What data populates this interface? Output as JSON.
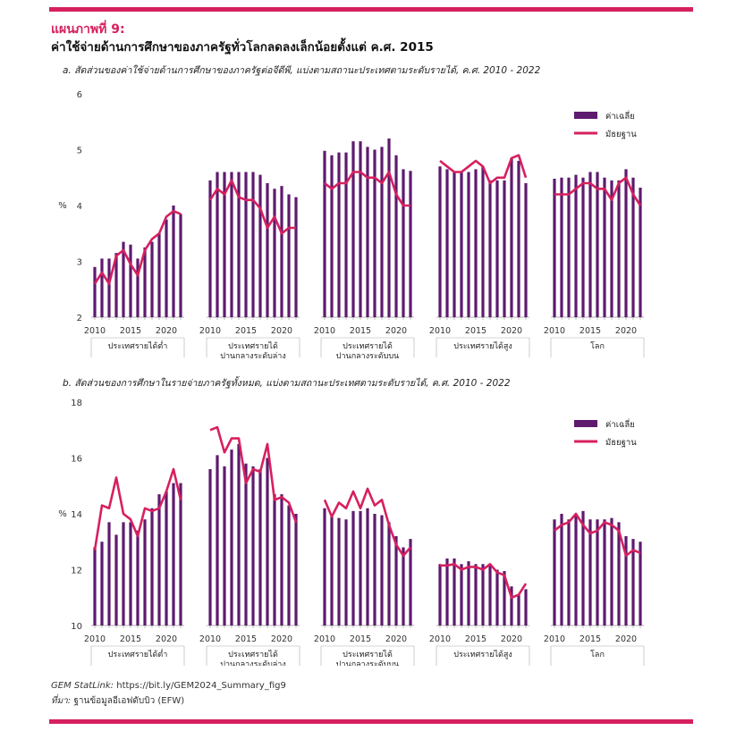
{
  "figure": {
    "label": "แผนภาพที่ 9:",
    "title": "ค่าใช้จ่ายด้านการศึกษาของภาครัฐทั่วโลกลดลงเล็กน้อยตั้งแต่ ค.ศ. 2015"
  },
  "footer": {
    "statlink_label": "GEM StatLink:",
    "statlink_url": "https://bit.ly/GEM2024_Summary_fig9",
    "source_label": "ที่มา:",
    "source_text": "ฐานข้อมูลอีเอฟดับบิว (EFW)"
  },
  "colors": {
    "bar": "#5e1a6e",
    "line": "#d6205f",
    "accent": "#d6205f"
  },
  "chart_data": [
    {
      "type": "bar",
      "title": "a. สัดส่วนของค่าใช้จ่ายด้านการศึกษาของภาครัฐต่อจีดีพี, แบ่งตามสถานะประเทศตามระดับรายได้, ค.ศ. 2010 - 2022",
      "ylabel": "%",
      "ylim": [
        2,
        6
      ],
      "yticks": [
        2,
        3,
        4,
        5,
        6
      ],
      "xticks": [
        "2010",
        "2015",
        "2020"
      ],
      "years": [
        2010,
        2011,
        2012,
        2013,
        2014,
        2015,
        2016,
        2017,
        2018,
        2019,
        2020,
        2021,
        2022
      ],
      "legend": {
        "bar": "ค่าเฉลี่ย",
        "line": "มัธยฐาน"
      },
      "groups": [
        {
          "name": [
            "ประเทศรายได้ต่ำ"
          ],
          "mean": [
            2.9,
            3.05,
            3.05,
            3.15,
            3.35,
            3.3,
            3.05,
            3.25,
            3.35,
            3.5,
            3.75,
            4.0,
            3.85
          ],
          "median": [
            2.6,
            2.8,
            2.6,
            3.1,
            3.2,
            2.95,
            2.75,
            3.2,
            3.4,
            3.5,
            3.8,
            3.9,
            3.85
          ]
        },
        {
          "name": [
            "ประเทศรายได้",
            "ปานกลางระดับล่าง"
          ],
          "mean": [
            4.45,
            4.6,
            4.6,
            4.6,
            4.6,
            4.6,
            4.6,
            4.55,
            4.4,
            4.3,
            4.35,
            4.2,
            4.15
          ],
          "median": [
            4.1,
            4.3,
            4.2,
            4.45,
            4.15,
            4.1,
            4.1,
            3.95,
            3.6,
            3.8,
            3.5,
            3.6,
            3.6
          ]
        },
        {
          "name": [
            "ประเทศรายได้",
            "ปานกลางระดับบน"
          ],
          "mean": [
            4.98,
            4.9,
            4.95,
            4.95,
            5.15,
            5.15,
            5.05,
            5.0,
            5.05,
            5.2,
            4.9,
            4.65,
            4.62
          ],
          "median": [
            4.4,
            4.3,
            4.4,
            4.4,
            4.6,
            4.6,
            4.5,
            4.5,
            4.4,
            4.6,
            4.2,
            4.0,
            4.0
          ]
        },
        {
          "name": [
            "ประเทศรายได้สูง"
          ],
          "mean": [
            4.7,
            4.65,
            4.6,
            4.6,
            4.6,
            4.65,
            4.7,
            4.45,
            4.45,
            4.45,
            4.85,
            4.8,
            4.4
          ],
          "median": [
            4.8,
            4.7,
            4.6,
            4.6,
            4.7,
            4.8,
            4.7,
            4.4,
            4.5,
            4.5,
            4.85,
            4.9,
            4.5
          ]
        },
        {
          "name": [
            "โลก"
          ],
          "mean": [
            4.48,
            4.5,
            4.5,
            4.55,
            4.5,
            4.6,
            4.6,
            4.5,
            4.45,
            4.45,
            4.65,
            4.5,
            4.32
          ],
          "median": [
            4.2,
            4.2,
            4.2,
            4.3,
            4.4,
            4.4,
            4.3,
            4.3,
            4.1,
            4.4,
            4.5,
            4.2,
            4.0
          ]
        }
      ]
    },
    {
      "type": "bar",
      "title": "b. สัดส่วนของการศึกษาในรายจ่ายภาครัฐทั้งหมด, แบ่งตามสถานะประเทศตามระดับรายได้, ค.ศ. 2010 - 2022",
      "ylabel": "%",
      "ylim": [
        10,
        18
      ],
      "yticks": [
        10,
        12,
        14,
        16,
        18
      ],
      "xticks": [
        "2010",
        "2015",
        "2020"
      ],
      "years": [
        2010,
        2011,
        2012,
        2013,
        2014,
        2015,
        2016,
        2017,
        2018,
        2019,
        2020,
        2021,
        2022
      ],
      "legend": {
        "bar": "ค่าเฉลี่ย",
        "line": "มัธยฐาน"
      },
      "groups": [
        {
          "name": [
            "ประเทศรายได้ต่ำ"
          ],
          "mean": [
            12.8,
            13.0,
            13.7,
            13.25,
            13.7,
            13.7,
            13.4,
            13.8,
            14.2,
            14.7,
            14.8,
            15.1,
            15.1
          ],
          "median": [
            12.7,
            14.3,
            14.2,
            15.3,
            14.0,
            13.8,
            13.2,
            14.2,
            14.1,
            14.2,
            14.8,
            15.6,
            14.5
          ]
        },
        {
          "name": [
            "ประเทศรายได้",
            "ปานกลางระดับล่าง"
          ],
          "mean": [
            15.6,
            16.1,
            15.7,
            16.3,
            16.5,
            15.8,
            15.7,
            15.6,
            16.0,
            14.7,
            14.7,
            14.3,
            14.0
          ],
          "median": [
            17.0,
            17.1,
            16.2,
            16.7,
            16.7,
            15.1,
            15.6,
            15.5,
            16.5,
            14.5,
            14.6,
            14.4,
            13.7
          ]
        },
        {
          "name": [
            "ประเทศรายได้",
            "ปานกลางระดับบน"
          ],
          "mean": [
            14.2,
            13.9,
            13.85,
            13.8,
            14.1,
            14.1,
            14.2,
            14.0,
            13.95,
            13.7,
            13.2,
            12.8,
            13.1
          ],
          "median": [
            14.5,
            13.9,
            14.4,
            14.2,
            14.8,
            14.2,
            14.9,
            14.3,
            14.5,
            13.6,
            12.9,
            12.5,
            12.8
          ]
        },
        {
          "name": [
            "ประเทศรายได้สูง"
          ],
          "mean": [
            12.2,
            12.4,
            12.4,
            12.2,
            12.3,
            12.2,
            12.2,
            12.2,
            12.0,
            11.95,
            11.4,
            11.1,
            11.3
          ],
          "median": [
            12.15,
            12.15,
            12.2,
            12.0,
            12.1,
            12.1,
            12.0,
            12.2,
            11.9,
            11.8,
            11.0,
            11.1,
            11.5
          ]
        },
        {
          "name": [
            "โลก"
          ],
          "mean": [
            13.8,
            14.0,
            13.8,
            14.0,
            14.1,
            13.8,
            13.8,
            13.8,
            13.85,
            13.7,
            13.2,
            13.1,
            13.0
          ],
          "median": [
            13.4,
            13.6,
            13.7,
            14.0,
            13.6,
            13.3,
            13.4,
            13.7,
            13.6,
            13.4,
            12.5,
            12.7,
            12.6
          ]
        }
      ]
    }
  ]
}
